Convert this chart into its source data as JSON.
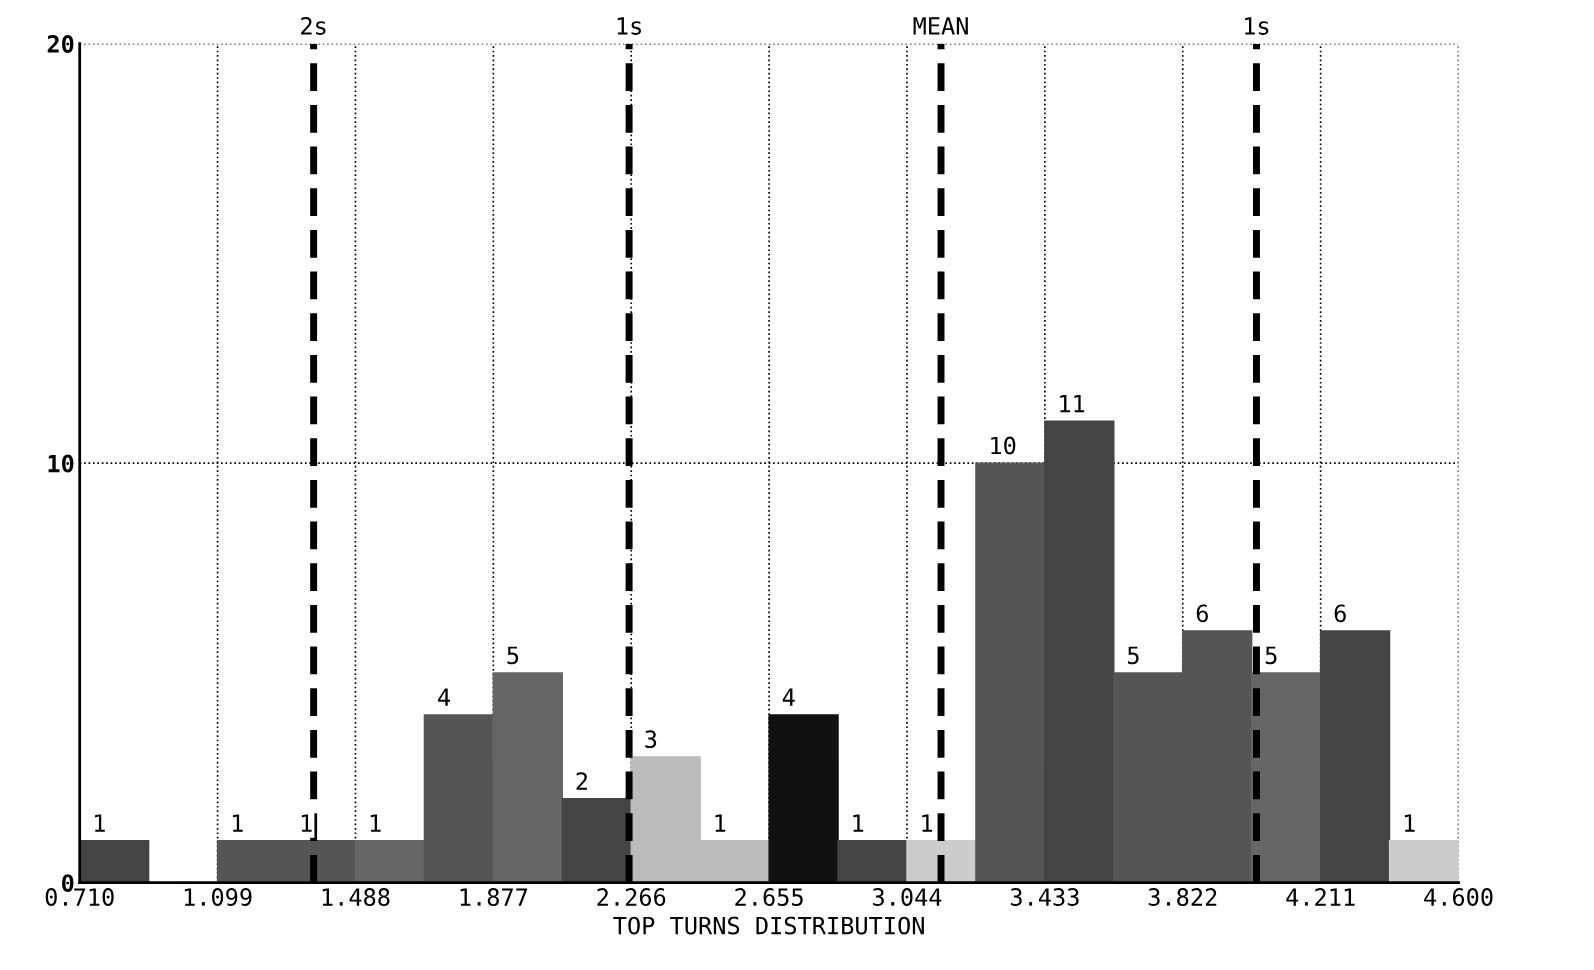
{
  "chart_data": {
    "type": "histogram",
    "xlabel": "TOP TURNS DISTRIBUTION",
    "bins": [
      0.71,
      0.9045,
      1.099,
      1.2935,
      1.488,
      1.6825,
      1.877,
      2.0715,
      2.266,
      2.4605,
      2.655,
      2.8495,
      3.044,
      3.2385,
      3.433,
      3.6275,
      3.822,
      4.0165,
      4.211,
      4.4055,
      4.6
    ],
    "values": [
      1,
      0,
      1,
      1,
      1,
      4,
      5,
      2,
      3,
      1,
      4,
      1,
      1,
      10,
      11,
      5,
      6,
      5,
      6,
      1
    ],
    "value_labels": [
      "1",
      null,
      "1",
      "1",
      "1",
      "4",
      "5",
      "2",
      "3",
      "1",
      "4",
      "1",
      "1",
      "10",
      "11",
      "5",
      "6",
      "5",
      "6",
      "1"
    ],
    "colors": [
      "#444444",
      "#444444",
      "#555555",
      "#555555",
      "#666666",
      "#555555",
      "#666666",
      "#444444",
      "#bbbbbb",
      "#bbbbbb",
      "#111111",
      "#444444",
      "#cccccc",
      "#555555",
      "#444444",
      "#555555",
      "#555555",
      "#666666",
      "#444444",
      "#cccccc"
    ],
    "xlim": [
      0.71,
      4.6
    ],
    "ylim": [
      0,
      20
    ],
    "xticks": [
      {
        "value": 0.71,
        "label": "0.710"
      },
      {
        "value": 1.099,
        "label": "1.099"
      },
      {
        "value": 1.488,
        "label": "1.488"
      },
      {
        "value": 1.877,
        "label": "1.877"
      },
      {
        "value": 2.266,
        "label": "2.266"
      },
      {
        "value": 2.655,
        "label": "2.655"
      },
      {
        "value": 3.044,
        "label": "3.044"
      },
      {
        "value": 3.433,
        "label": "3.433"
      },
      {
        "value": 3.822,
        "label": "3.822"
      },
      {
        "value": 4.211,
        "label": "4.211"
      },
      {
        "value": 4.6,
        "label": "4.600"
      }
    ],
    "yticks": [
      0,
      10,
      20
    ],
    "grid": true,
    "ref_lines": [
      {
        "axis": "x",
        "value": 1.37,
        "label": "2s",
        "color": "#000000",
        "line_style": "dashed"
      },
      {
        "axis": "x",
        "value": 2.26,
        "label": "1s",
        "color": "#000000",
        "line_style": "dashed"
      },
      {
        "axis": "x",
        "value": 3.14,
        "label": "MEAN",
        "color": "#000000",
        "line_style": "dashed"
      },
      {
        "axis": "x",
        "value": 4.03,
        "label": "1s",
        "color": "#000000",
        "line_style": "dashed"
      }
    ]
  }
}
